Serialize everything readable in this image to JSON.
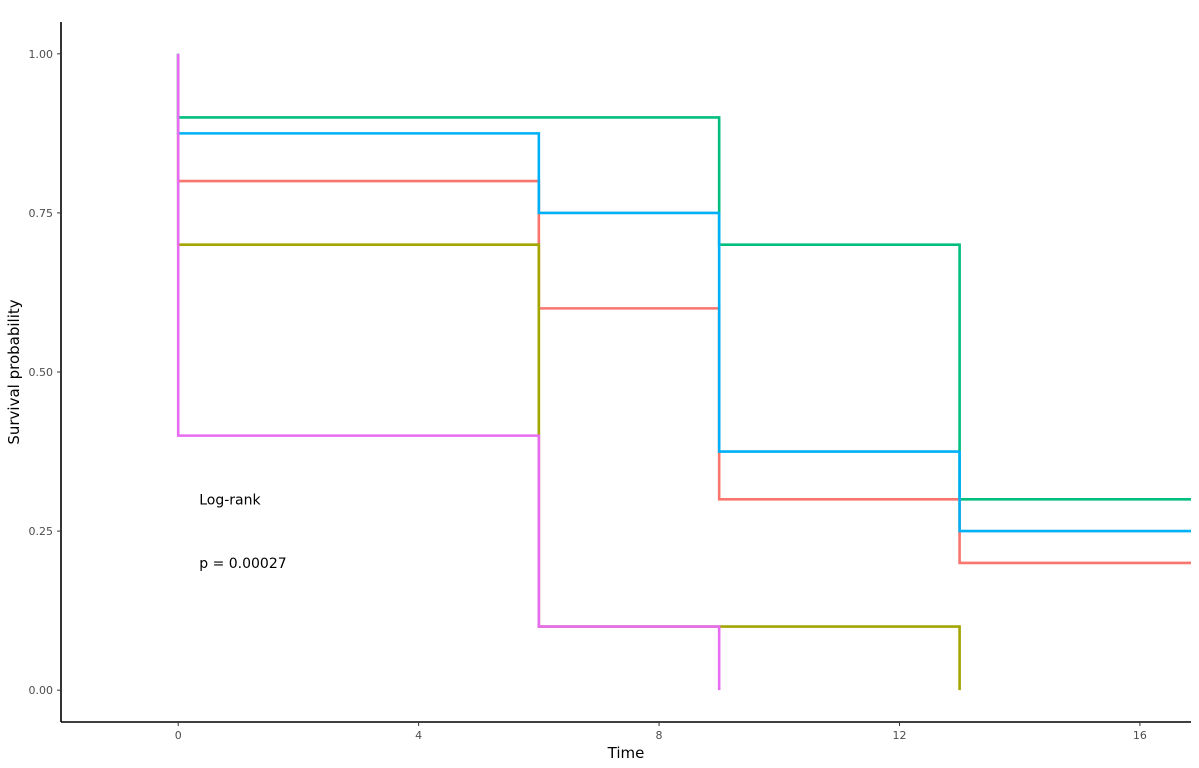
{
  "chart_data": {
    "type": "line",
    "step": true,
    "xlabel": "Time",
    "ylabel": "Survival probability",
    "xlim": [
      -1.95,
      16.85
    ],
    "ylim": [
      -0.05,
      1.05
    ],
    "xticks": [
      0,
      4,
      8,
      12,
      16
    ],
    "xtick_labels": [
      "0",
      "4",
      "8",
      "12",
      "16"
    ],
    "yticks": [
      0,
      0.25,
      0.5,
      0.75,
      1
    ],
    "ytick_labels": [
      "0.00",
      "0.25",
      "0.50",
      "0.75",
      "1.00"
    ],
    "grid": false,
    "legend": "none",
    "annotations": [
      "Log-rank",
      "p = 0.00027"
    ],
    "series": [
      {
        "color": "#F8766D",
        "x": [
          0,
          0,
          6,
          9,
          13,
          16.85
        ],
        "y": [
          1,
          0.8,
          0.6,
          0.3,
          0.2,
          0.2
        ]
      },
      {
        "color": "#A3A500",
        "x": [
          0,
          0,
          6,
          9,
          13,
          13
        ],
        "y": [
          1,
          0.7,
          0.1,
          0.1,
          0,
          0
        ]
      },
      {
        "color": "#00BF7D",
        "x": [
          0,
          0,
          9,
          13,
          16.85
        ],
        "y": [
          1,
          0.9,
          0.7,
          0.3,
          0.3
        ]
      },
      {
        "color": "#00B0F6",
        "x": [
          0,
          0,
          6,
          9,
          13,
          16.85
        ],
        "y": [
          1,
          0.875,
          0.75,
          0.375,
          0.25,
          0.25
        ]
      },
      {
        "color": "#E76BF3",
        "x": [
          0,
          0,
          6,
          9,
          9
        ],
        "y": [
          1,
          0.4,
          0.1,
          0,
          0
        ]
      }
    ]
  }
}
